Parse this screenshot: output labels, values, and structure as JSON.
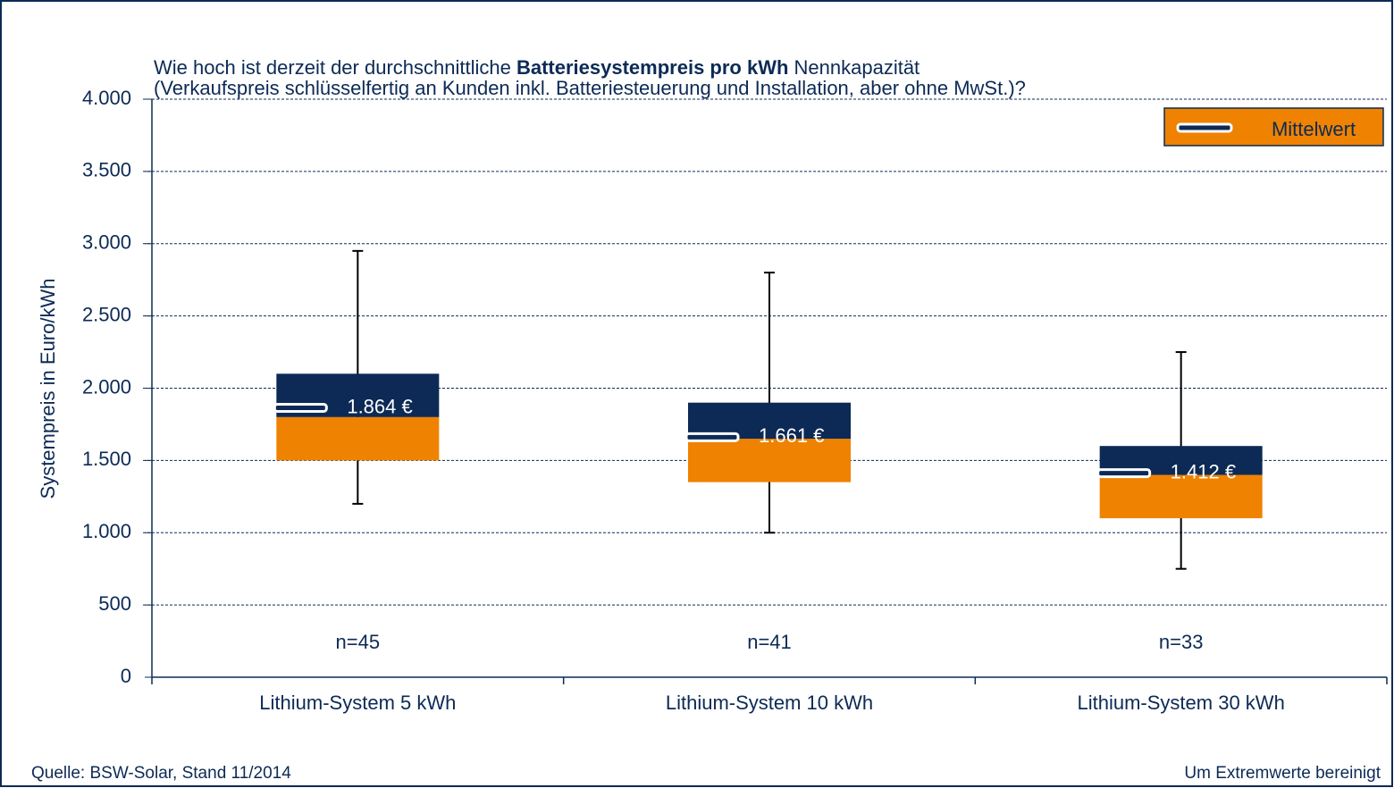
{
  "chart_data": {
    "type": "box",
    "title_parts": [
      {
        "text": "Wie hoch ist derzeit der durchschnittliche ",
        "bold": false
      },
      {
        "text": "Batteriesystempreis pro kWh",
        "bold": true
      },
      {
        "text": " Nennkapazität",
        "bold": false
      }
    ],
    "subtitle": "(Verkaufspreis schlüsselfertig an Kunden inkl. Batteriesteuerung und Installation, aber ohne MwSt.)?",
    "y_label": "Systempreis in Euro/kWh",
    "categories": [
      "Lithium-System 5 kWh",
      "Lithium-System 10 kWh",
      "Lithium-System 30 kWh"
    ],
    "n_labels": [
      "n=45",
      "n=41",
      "n=33"
    ],
    "upper_color": "#0c2a55",
    "lower_color": "#ef8200",
    "mean_color": "#ffffff",
    "series": [
      {
        "whisker_low": 1200,
        "q1": 1500,
        "median": 1800,
        "q3": 2100,
        "whisker_high": 2950,
        "mean": 1864,
        "mean_label": "1.864 €"
      },
      {
        "whisker_low": 1000,
        "q1": 1350,
        "median": 1650,
        "q3": 1900,
        "whisker_high": 2800,
        "mean": 1661,
        "mean_label": "1.661 €"
      },
      {
        "whisker_low": 750,
        "q1": 1100,
        "median": 1400,
        "q3": 1600,
        "whisker_high": 2250,
        "mean": 1412,
        "mean_label": "1.412 €"
      }
    ],
    "legend": {
      "label": "Mittelwert",
      "position": "upper right"
    },
    "ylim": [
      0,
      4000
    ],
    "yticks": [
      0,
      500,
      {
        "value": 1000,
        "label": "1.000"
      },
      {
        "value": 1500,
        "label": "1.500"
      },
      {
        "value": 2000,
        "label": "2.000"
      },
      {
        "value": 2500,
        "label": "2.500"
      },
      {
        "value": 3000,
        "label": "3.000"
      },
      {
        "value": 3500,
        "label": "3.500"
      },
      {
        "value": 4000,
        "label": "4.000"
      }
    ],
    "grid": true,
    "source": "Quelle: BSW-Solar, Stand 11/2014",
    "note": "Um Extremwerte bereinigt"
  }
}
